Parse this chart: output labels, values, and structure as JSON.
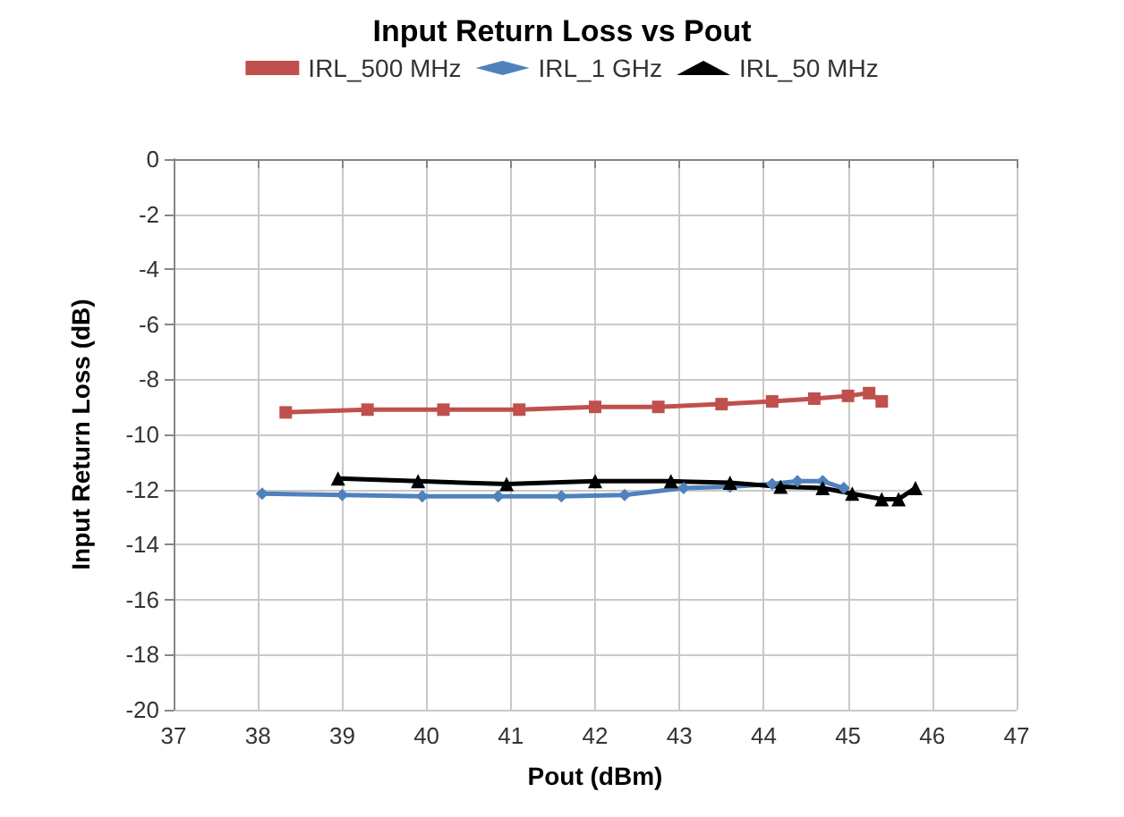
{
  "chart_data": {
    "type": "line",
    "title": "Input Return Loss vs Pout",
    "xlabel": "Pout (dBm)",
    "ylabel": "Input Return Loss (dB)",
    "xlim": [
      37,
      47
    ],
    "xticks": [
      37,
      38,
      39,
      40,
      41,
      42,
      43,
      44,
      45,
      46,
      47
    ],
    "ylim": [
      -20,
      0
    ],
    "yticks": [
      -20,
      -18,
      -16,
      -14,
      -12,
      -10,
      -8,
      -6,
      -4,
      -2,
      0
    ],
    "grid": true,
    "legend": "top",
    "series": [
      {
        "name": "IRL_500 MHz",
        "color": "#c0504d",
        "marker": "square",
        "x": [
          38.33,
          39.3,
          40.2,
          41.1,
          42.0,
          42.75,
          43.5,
          44.1,
          44.6,
          45.0,
          45.25,
          45.4
        ],
        "values": [
          -9.2,
          -9.1,
          -9.1,
          -9.1,
          -9.0,
          -9.0,
          -8.9,
          -8.8,
          -8.7,
          -8.6,
          -8.5,
          -8.8
        ]
      },
      {
        "name": "IRL_1 GHz",
        "color": "#4f81bd",
        "marker": "diamond",
        "x": [
          38.05,
          39.0,
          39.95,
          40.85,
          41.6,
          42.35,
          43.05,
          43.6,
          44.1,
          44.4,
          44.7,
          44.95
        ],
        "values": [
          -12.15,
          -12.2,
          -12.25,
          -12.25,
          -12.25,
          -12.2,
          -11.95,
          -11.9,
          -11.8,
          -11.7,
          -11.7,
          -11.95
        ]
      },
      {
        "name": "IRL_50 MHz",
        "color": "#000000",
        "marker": "triangle",
        "x": [
          38.95,
          39.9,
          40.95,
          42.0,
          42.9,
          43.6,
          44.2,
          44.7,
          45.05,
          45.4,
          45.6,
          45.8
        ],
        "values": [
          -11.6,
          -11.7,
          -11.8,
          -11.7,
          -11.7,
          -11.75,
          -11.9,
          -11.95,
          -12.15,
          -12.35,
          -12.35,
          -11.95
        ]
      }
    ]
  }
}
